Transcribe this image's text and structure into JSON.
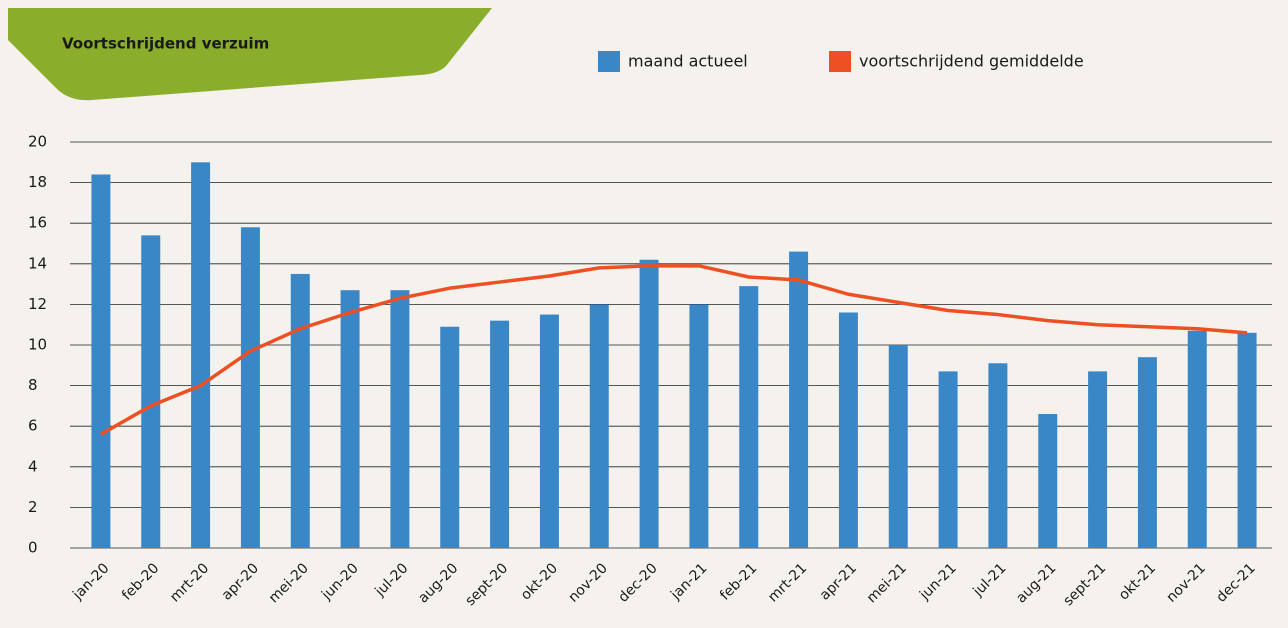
{
  "chart_data": {
    "type": "bar",
    "title": "Voortschrijdend verzuim",
    "categories": [
      "jan-20",
      "feb-20",
      "mrt-20",
      "apr-20",
      "mei-20",
      "jun-20",
      "jul-20",
      "aug-20",
      "sept-20",
      "okt-20",
      "nov-20",
      "dec-20",
      "jan-21",
      "feb-21",
      "mrt-21",
      "apr-21",
      "mei-21",
      "jun-21",
      "jul-21",
      "aug-21",
      "sept-21",
      "okt-21",
      "nov-21",
      "dec-21"
    ],
    "series": [
      {
        "name": "maand actueel",
        "color": "#3a87c8",
        "type": "bar",
        "values": [
          18.4,
          15.4,
          19.0,
          15.8,
          13.5,
          12.7,
          12.7,
          10.9,
          11.2,
          11.5,
          12.0,
          14.2,
          12.0,
          12.9,
          14.6,
          11.6,
          10.0,
          8.7,
          9.1,
          6.6,
          8.7,
          9.4,
          10.7,
          10.6
        ]
      },
      {
        "name": "voortschrijdend gemiddelde",
        "color": "#ee4f23",
        "type": "line",
        "values": [
          5.6,
          7.0,
          8.0,
          9.7,
          10.8,
          11.6,
          12.3,
          12.8,
          13.1,
          13.4,
          13.8,
          13.9,
          13.9,
          13.35,
          13.2,
          12.5,
          12.1,
          11.7,
          11.5,
          11.2,
          11.0,
          10.9,
          10.8,
          10.6
        ]
      }
    ],
    "ylim": [
      0,
      20
    ],
    "yticks": [
      0,
      2,
      4,
      6,
      8,
      10,
      12,
      14,
      16,
      18,
      20
    ],
    "grid": true,
    "legend": "top"
  }
}
